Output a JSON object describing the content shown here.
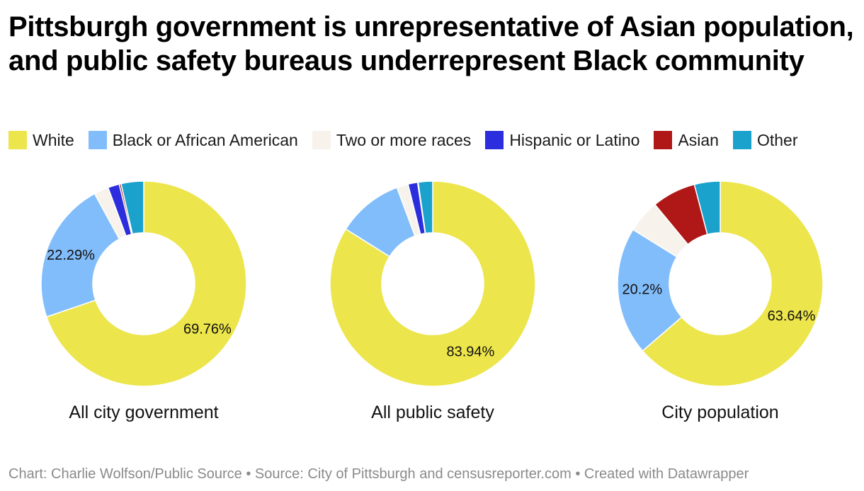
{
  "chart_data": {
    "type": "pie",
    "title": "Pittsburgh government is unrepresentative of Asian population, and public safety bureaus underrepresent Black community",
    "legend_position": "top",
    "legend": [
      {
        "name": "White",
        "color": "#ece54b"
      },
      {
        "name": "Black or African American",
        "color": "#82bdfb"
      },
      {
        "name": "Two or more races",
        "color": "#f7f3ec"
      },
      {
        "name": "Hispanic or Latino",
        "color": "#2c2ddc"
      },
      {
        "name": "Asian",
        "color": "#b01818"
      },
      {
        "name": "Other",
        "color": "#1aa1cc"
      }
    ],
    "charts": [
      {
        "label": "All city government",
        "slices": [
          {
            "name": "White",
            "value": 69.76,
            "label": "69.76%"
          },
          {
            "name": "Black or African American",
            "value": 22.29,
            "label": "22.29%"
          },
          {
            "name": "Two or more races",
            "value": 2.3,
            "label": ""
          },
          {
            "name": "Hispanic or Latino",
            "value": 1.8,
            "label": ""
          },
          {
            "name": "Asian",
            "value": 0.3,
            "label": ""
          },
          {
            "name": "Other",
            "value": 3.55,
            "label": ""
          }
        ]
      },
      {
        "label": "All public safety",
        "slices": [
          {
            "name": "White",
            "value": 83.94,
            "label": "83.94%"
          },
          {
            "name": "Black or African American",
            "value": 10.4,
            "label": ""
          },
          {
            "name": "Two or more races",
            "value": 1.8,
            "label": ""
          },
          {
            "name": "Hispanic or Latino",
            "value": 1.5,
            "label": ""
          },
          {
            "name": "Asian",
            "value": 0.1,
            "label": ""
          },
          {
            "name": "Other",
            "value": 2.26,
            "label": ""
          }
        ]
      },
      {
        "label": "City population",
        "slices": [
          {
            "name": "White",
            "value": 63.64,
            "label": "63.64%"
          },
          {
            "name": "Black or African American",
            "value": 20.2,
            "label": "20.2%"
          },
          {
            "name": "Two or more races",
            "value": 5.2,
            "label": ""
          },
          {
            "name": "Hispanic or Latino",
            "value": 0,
            "label": ""
          },
          {
            "name": "Asian",
            "value": 6.9,
            "label": ""
          },
          {
            "name": "Other",
            "value": 4.06,
            "label": ""
          }
        ]
      }
    ]
  },
  "footer": "Chart: Charlie Wolfson/Public Source • Source: City of Pittsburgh and censusreporter.com • Created with Datawrapper"
}
